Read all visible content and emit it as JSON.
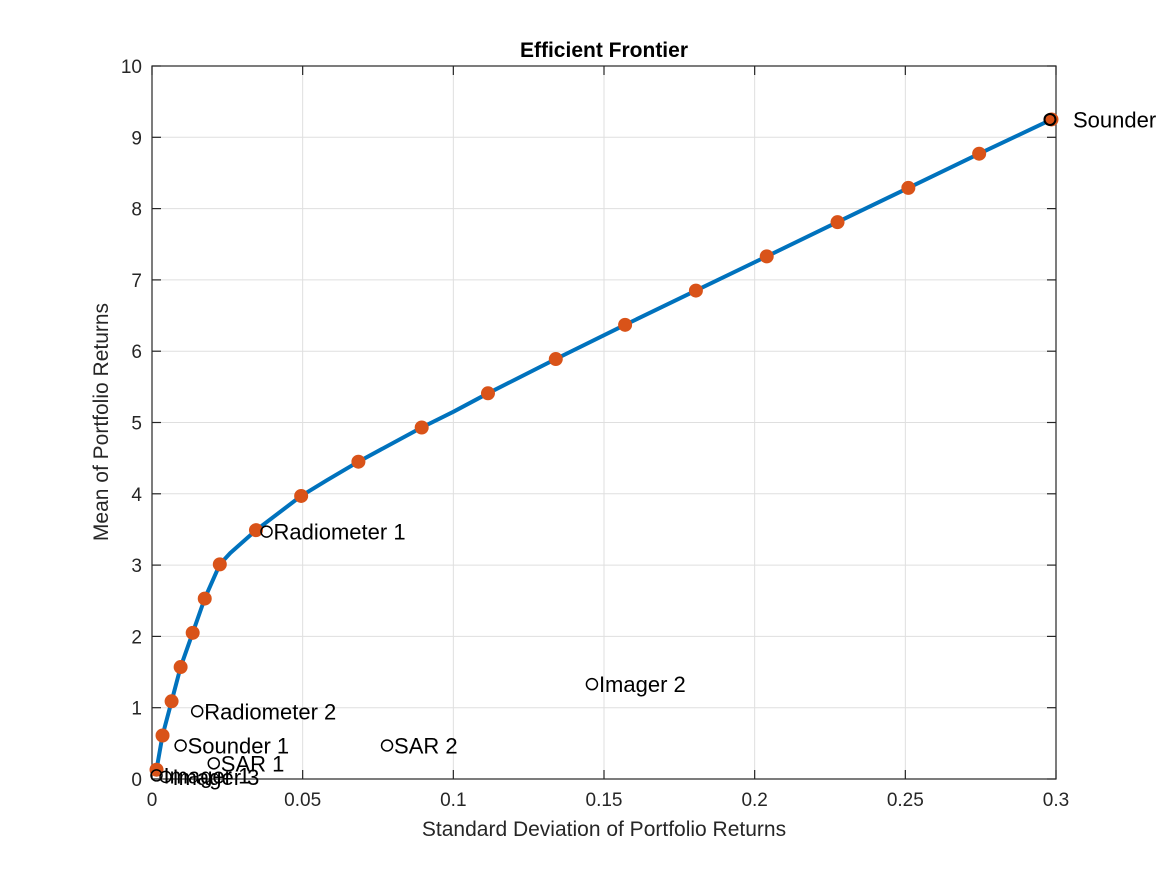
{
  "chart_data": {
    "type": "line",
    "title": "Efficient Frontier",
    "xlabel": "Standard Deviation of Portfolio Returns",
    "ylabel": "Mean of Portfolio Returns",
    "xlim": [
      0,
      0.3
    ],
    "ylim": [
      0,
      10
    ],
    "grid": true,
    "x_ticks": [
      0,
      0.05,
      0.1,
      0.15,
      0.2,
      0.25,
      0.3
    ],
    "x_tick_labels": [
      "0",
      "0.05",
      "0.1",
      "0.15",
      "0.2",
      "0.25",
      "0.3"
    ],
    "y_ticks": [
      0,
      1,
      2,
      3,
      4,
      5,
      6,
      7,
      8,
      9,
      10
    ],
    "y_tick_labels": [
      "0",
      "1",
      "2",
      "3",
      "4",
      "5",
      "6",
      "7",
      "8",
      "9",
      "10"
    ],
    "frontier": {
      "color": "#0072BD",
      "x": [
        0.0015,
        0.0035,
        0.0065,
        0.0095,
        0.0135,
        0.0175,
        0.0225,
        0.026,
        0.0345,
        0.0495,
        0.058,
        0.0685,
        0.0895,
        0.1,
        0.1115,
        0.134,
        0.157,
        0.1805,
        0.204,
        0.2275,
        0.251,
        0.2745,
        0.2985
      ],
      "y": [
        0.13,
        0.61,
        1.09,
        1.57,
        2.05,
        2.53,
        3.01,
        3.17,
        3.49,
        3.97,
        4.19,
        4.45,
        4.93,
        5.15,
        5.41,
        5.89,
        6.37,
        6.85,
        7.33,
        7.81,
        8.29,
        8.77,
        9.25
      ]
    },
    "portfolios": {
      "color": "#D95319",
      "x": [
        0.0015,
        0.0035,
        0.0065,
        0.0095,
        0.0135,
        0.0175,
        0.0225,
        0.0345,
        0.0495,
        0.0685,
        0.0895,
        0.1115,
        0.134,
        0.157,
        0.1805,
        0.204,
        0.2275,
        0.251,
        0.2745,
        0.2985
      ],
      "y": [
        0.13,
        0.61,
        1.09,
        1.57,
        2.05,
        2.53,
        3.01,
        3.49,
        3.97,
        4.45,
        4.93,
        5.41,
        5.89,
        6.37,
        6.85,
        7.33,
        7.81,
        8.29,
        8.77,
        9.25
      ]
    },
    "assets": [
      {
        "label": "Sounder",
        "x": 0.298,
        "y": 9.25
      },
      {
        "label": "Radiometer 1",
        "x": 0.038,
        "y": 3.47
      },
      {
        "label": "Radiometer 2",
        "x": 0.015,
        "y": 0.95
      },
      {
        "label": "Sounder 1",
        "x": 0.0095,
        "y": 0.47
      },
      {
        "label": "SAR 1",
        "x": 0.0205,
        "y": 0.22
      },
      {
        "label": "Imager 3",
        "x": 0.0045,
        "y": 0.03
      },
      {
        "label": "Imager 1",
        "x": 0.0015,
        "y": 0.05
      },
      {
        "label": "SAR 2",
        "x": 0.078,
        "y": 0.47
      },
      {
        "label": "Imager 2",
        "x": 0.146,
        "y": 1.33
      }
    ]
  }
}
